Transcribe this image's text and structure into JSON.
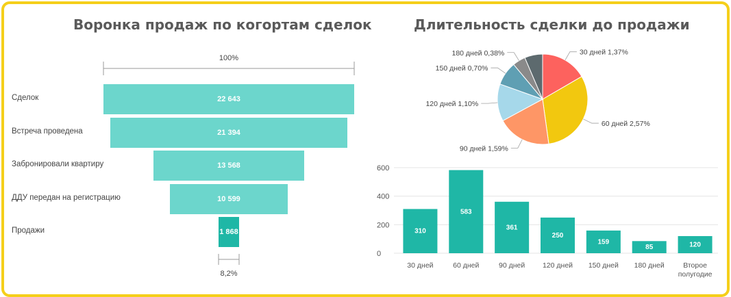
{
  "colors": {
    "frame": "#f5cf1a",
    "funnel_light": "#6cd6cc",
    "funnel_dark": "#1fb7a6",
    "bar": "#1fb7a6"
  },
  "chart_data": [
    {
      "type": "bar",
      "title": "Воронка продаж по когортам сделок",
      "orientation": "horizontal-funnel",
      "categories": [
        "Сделок",
        "Встреча проведена",
        "Забронировали квартиру",
        "ДДУ передан на регистрацию",
        "Продажи"
      ],
      "values": [
        22643,
        21394,
        13568,
        10599,
        1868
      ],
      "value_labels": [
        "22 643",
        "21 394",
        "13 568",
        "10 599",
        "1 868"
      ],
      "top_annotation": "100%",
      "bottom_annotation": "8,2%"
    },
    {
      "type": "pie",
      "title": "Длительность сделки до продажи",
      "slices": [
        {
          "label": "30 дней 1,37%",
          "value": 1.37,
          "color": "#fd625e"
        },
        {
          "label": "60 дней 2,57%",
          "value": 2.57,
          "color": "#f2c80f"
        },
        {
          "label": "90 дней 1,59%",
          "value": 1.59,
          "color": "#fe9666"
        },
        {
          "label": "120 дней 1,10%",
          "value": 1.1,
          "color": "#a6d8ea"
        },
        {
          "label": "150 дней 0,70%",
          "value": 0.7,
          "color": "#5f9fb3"
        },
        {
          "label": "180 дней 0,38%",
          "value": 0.38,
          "color": "#8a8a8a"
        },
        {
          "label": "",
          "value": 0.53,
          "color": "#5d6a6e"
        }
      ]
    },
    {
      "type": "bar",
      "categories": [
        "30 дней",
        "60 дней",
        "90 дней",
        "120 дней",
        "150 дней",
        "180 дней",
        "Второе полугодие"
      ],
      "values": [
        310,
        583,
        361,
        250,
        159,
        85,
        120
      ],
      "ylim": [
        0,
        600
      ],
      "yticks": [
        0,
        200,
        400,
        600
      ],
      "grid": true
    }
  ]
}
